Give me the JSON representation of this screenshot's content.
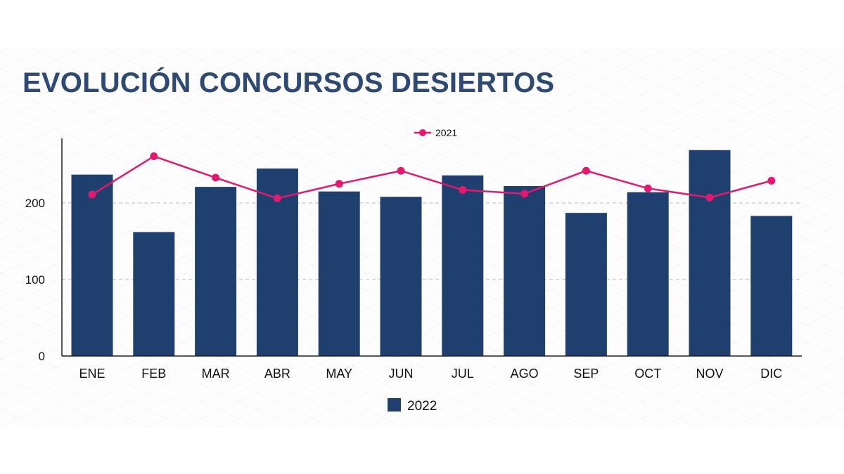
{
  "title": "EVOLUCIÓN CONCURSOS DESIERTOS",
  "chart_data": {
    "type": "bar",
    "title": "EVOLUCIÓN CONCURSOS DESIERTOS",
    "xlabel": "",
    "ylabel": "",
    "categories": [
      "ENE",
      "FEB",
      "MAR",
      "ABR",
      "MAY",
      "JUN",
      "JUL",
      "AGO",
      "SEP",
      "OCT",
      "NOV",
      "DIC"
    ],
    "y_ticks": [
      "0",
      "100",
      "200"
    ],
    "ylim": [
      0,
      285
    ],
    "grid": "horizontal dashed",
    "series": [
      {
        "name": "2022",
        "type": "bar",
        "color": "#1f3f6e",
        "legend_position": "bottom-center",
        "values": [
          237,
          162,
          221,
          245,
          215,
          208,
          236,
          222,
          187,
          214,
          269,
          183
        ]
      },
      {
        "name": "2021",
        "type": "line",
        "color": "#e5186f",
        "legend_position": "top-center",
        "values": [
          211,
          261,
          233,
          206,
          225,
          242,
          217,
          212,
          242,
          219,
          207,
          229
        ]
      }
    ]
  }
}
